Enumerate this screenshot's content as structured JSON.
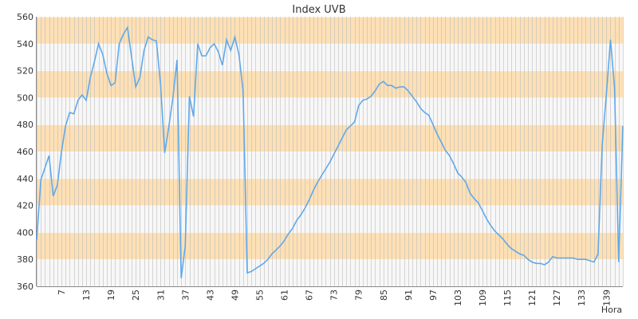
{
  "chart_data": {
    "type": "line",
    "title": "Index UVB",
    "xlabel": "Hora",
    "ylabel": "",
    "ylim": [
      360,
      560
    ],
    "yticks": [
      360,
      380,
      400,
      420,
      440,
      460,
      480,
      500,
      520,
      540,
      560
    ],
    "xlim": [
      1,
      143
    ],
    "xticks": [
      7,
      13,
      19,
      25,
      31,
      37,
      43,
      49,
      55,
      61,
      67,
      73,
      79,
      85,
      91,
      97,
      103,
      109,
      115,
      121,
      127,
      133,
      139
    ],
    "grid": true,
    "legend": "none",
    "colors": {
      "line": "#5fa9ec",
      "band_orange": "#fde0b5",
      "band_light": "#f7f7f7",
      "vgrid": "#bdbdbd",
      "axis": "#888888"
    },
    "series": [
      {
        "name": "",
        "x": [
          1,
          2,
          3,
          4,
          5,
          6,
          7,
          8,
          9,
          10,
          11,
          12,
          13,
          14,
          15,
          16,
          17,
          18,
          19,
          20,
          21,
          22,
          23,
          24,
          25,
          26,
          27,
          28,
          29,
          30,
          31,
          32,
          33,
          34,
          35,
          36,
          37,
          38,
          39,
          40,
          41,
          42,
          43,
          44,
          45,
          46,
          47,
          48,
          49,
          50,
          51,
          52,
          53,
          54,
          55,
          56,
          57,
          58,
          59,
          60,
          61,
          62,
          63,
          64,
          65,
          66,
          67,
          68,
          69,
          70,
          71,
          72,
          73,
          74,
          75,
          76,
          77,
          78,
          79,
          80,
          81,
          82,
          83,
          84,
          85,
          86,
          87,
          88,
          89,
          90,
          91,
          92,
          93,
          94,
          95,
          96,
          97,
          98,
          99,
          100,
          101,
          102,
          103,
          104,
          105,
          106,
          107,
          108,
          109,
          110,
          111,
          112,
          113,
          114,
          115,
          116,
          117,
          118,
          119,
          120,
          121,
          122,
          123,
          124,
          125,
          126,
          127,
          128,
          129,
          130,
          131,
          132,
          133,
          134,
          135,
          136,
          137,
          138,
          139,
          140,
          141,
          142,
          143
        ],
        "values": [
          394,
          439,
          448,
          457,
          427,
          435,
          460,
          479,
          489,
          488,
          498,
          502,
          498,
          515,
          527,
          540,
          532,
          518,
          509,
          511,
          540,
          547,
          552,
          530,
          508,
          515,
          535,
          545,
          543,
          542,
          510,
          459,
          478,
          500,
          528,
          366,
          390,
          501,
          486,
          540,
          531,
          531,
          537,
          540,
          534,
          524,
          543,
          535,
          545,
          532,
          505,
          370,
          371,
          373,
          375,
          377,
          380,
          384,
          387,
          390,
          394,
          399,
          403,
          409,
          413,
          418,
          424,
          431,
          437,
          442,
          447,
          452,
          458,
          464,
          470,
          476,
          479,
          482,
          494,
          498,
          499,
          501,
          505,
          510,
          512,
          509,
          509,
          507,
          508,
          508,
          505,
          501,
          497,
          492,
          489,
          487,
          480,
          473,
          467,
          461,
          457,
          451,
          444,
          441,
          437,
          429,
          425,
          422,
          416,
          410,
          405,
          401,
          398,
          395,
          391,
          388,
          386,
          384,
          383,
          380,
          378,
          377,
          377,
          376,
          378,
          382,
          381,
          381,
          381,
          381,
          381,
          380,
          380,
          380,
          379,
          378,
          384,
          465,
          502,
          543,
          507,
          378,
          479
        ]
      }
    ]
  }
}
